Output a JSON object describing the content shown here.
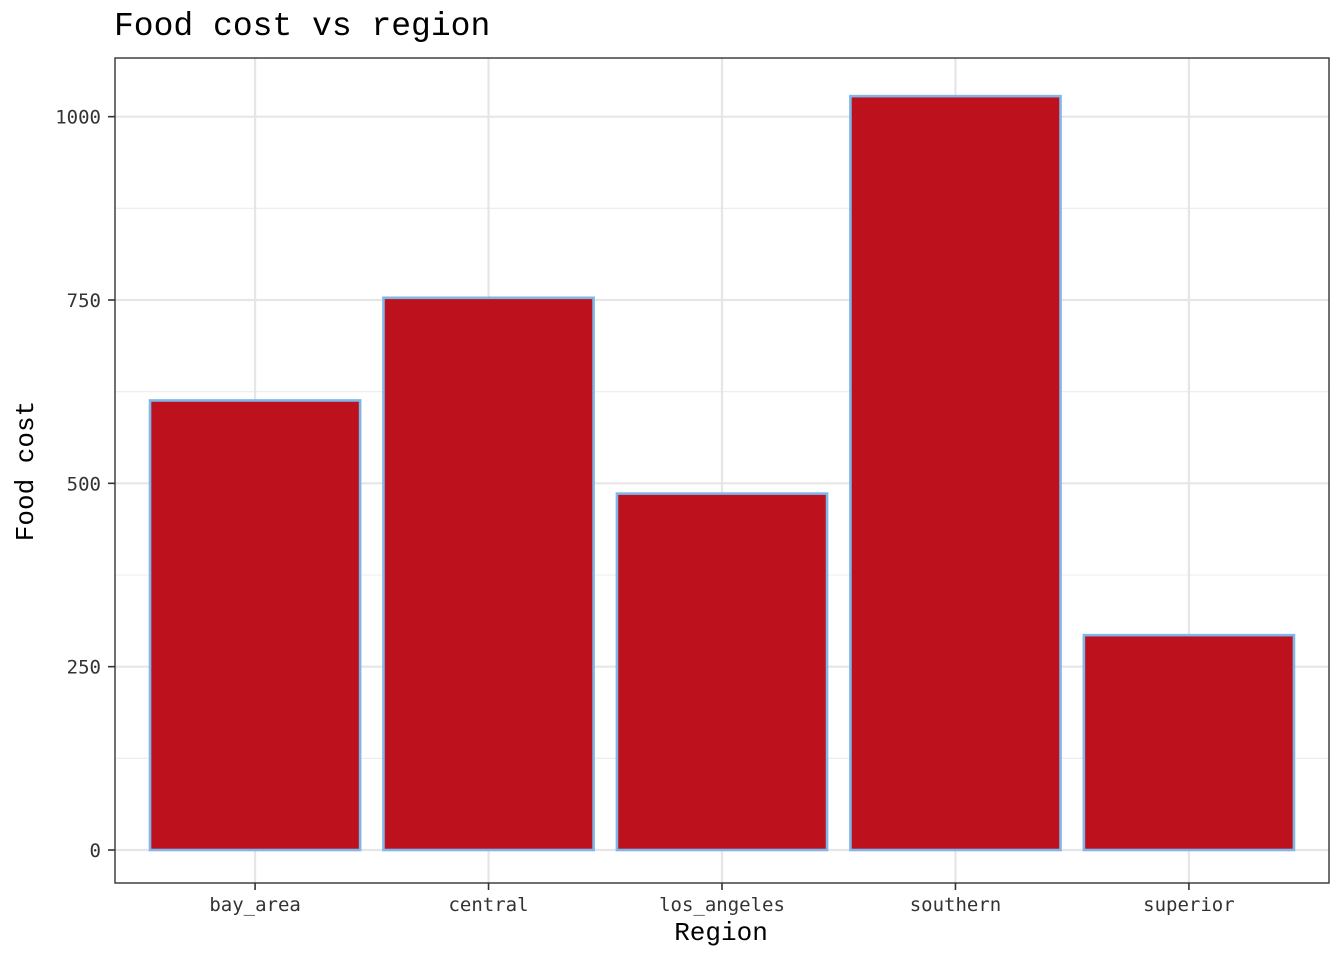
{
  "chart_data": {
    "type": "bar",
    "title": "Food cost vs region",
    "xlabel": "Region",
    "ylabel": "Food cost",
    "categories": [
      "bay_area",
      "central",
      "los_angeles",
      "southern",
      "superior"
    ],
    "values": [
      613,
      753,
      486,
      1028,
      293
    ],
    "ylim": [
      -45,
      1080
    ],
    "yticks": [
      0,
      250,
      500,
      750,
      1000
    ],
    "ytick_labels": [
      "0",
      "250",
      "500",
      "750",
      "1000"
    ],
    "grid": true,
    "bar_fill": "#be111e",
    "bar_outline": "#7fb7e8"
  }
}
